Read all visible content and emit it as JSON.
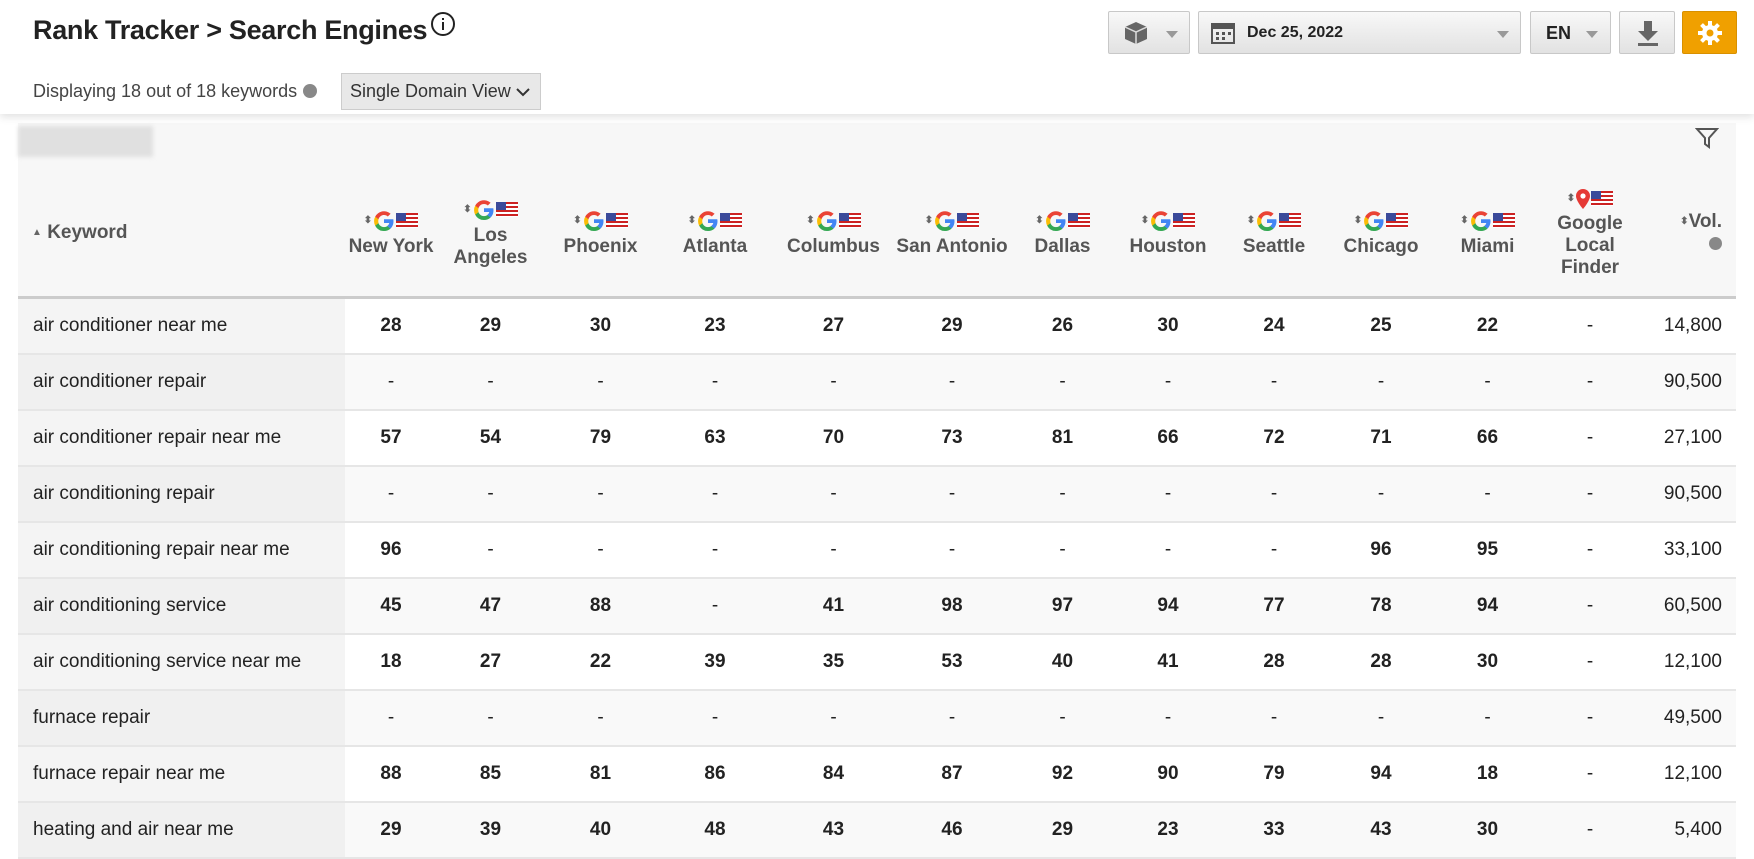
{
  "header": {
    "title": "Rank Tracker > Search Engines",
    "summary": "Displaying 18 out of 18 keywords",
    "view": "Single Domain View",
    "date": "Dec 25, 2022",
    "language": "EN"
  },
  "table": {
    "columns": [
      "Keyword",
      "New York",
      "Los Angeles",
      "Phoenix",
      "Atlanta",
      "Columbus",
      "San Antonio",
      "Dallas",
      "Houston",
      "Seattle",
      "Chicago",
      "Miami",
      "Google Local Finder",
      "Vol."
    ],
    "rows": [
      [
        "air conditioner near me",
        "28",
        "29",
        "30",
        "23",
        "27",
        "29",
        "26",
        "30",
        "24",
        "25",
        "22",
        "-",
        "14,800"
      ],
      [
        "air conditioner repair",
        "-",
        "-",
        "-",
        "-",
        "-",
        "-",
        "-",
        "-",
        "-",
        "-",
        "-",
        "-",
        "90,500"
      ],
      [
        "air conditioner repair near me",
        "57",
        "54",
        "79",
        "63",
        "70",
        "73",
        "81",
        "66",
        "72",
        "71",
        "66",
        "-",
        "27,100"
      ],
      [
        "air conditioning repair",
        "-",
        "-",
        "-",
        "-",
        "-",
        "-",
        "-",
        "-",
        "-",
        "-",
        "-",
        "-",
        "90,500"
      ],
      [
        "air conditioning repair near me",
        "96",
        "-",
        "-",
        "-",
        "-",
        "-",
        "-",
        "-",
        "-",
        "96",
        "95",
        "-",
        "33,100"
      ],
      [
        "air conditioning service",
        "45",
        "47",
        "88",
        "-",
        "41",
        "98",
        "97",
        "94",
        "77",
        "78",
        "94",
        "-",
        "60,500"
      ],
      [
        "air conditioning service near me",
        "18",
        "27",
        "22",
        "39",
        "35",
        "53",
        "40",
        "41",
        "28",
        "28",
        "30",
        "-",
        "12,100"
      ],
      [
        "furnace repair",
        "-",
        "-",
        "-",
        "-",
        "-",
        "-",
        "-",
        "-",
        "-",
        "-",
        "-",
        "-",
        "49,500"
      ],
      [
        "furnace repair near me",
        "88",
        "85",
        "81",
        "86",
        "84",
        "87",
        "92",
        "90",
        "79",
        "94",
        "18",
        "-",
        "12,100"
      ],
      [
        "heating and air near me",
        "29",
        "39",
        "40",
        "48",
        "43",
        "46",
        "29",
        "23",
        "33",
        "43",
        "30",
        "-",
        "5,400"
      ]
    ]
  }
}
